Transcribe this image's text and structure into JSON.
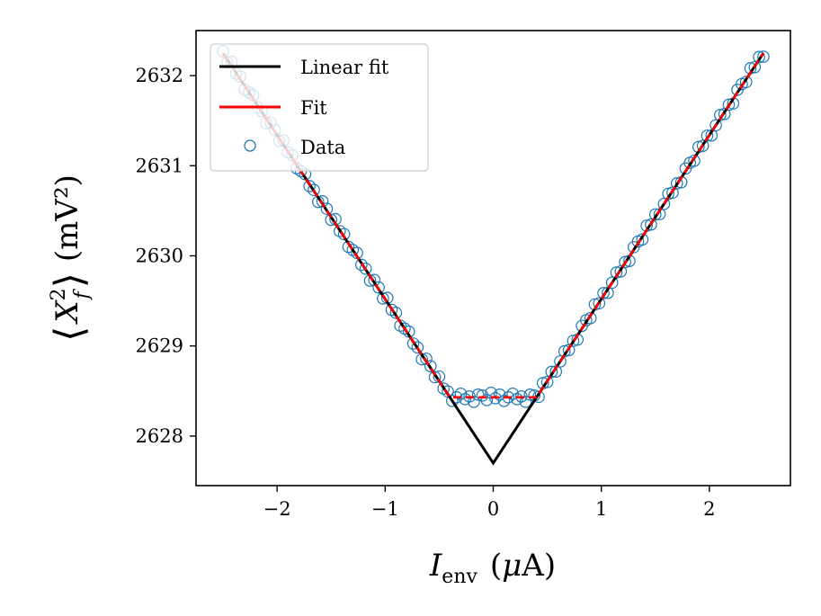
{
  "chart_data": {
    "type": "scatter",
    "title": "",
    "xlabel": {
      "main": "I",
      "sub": "env",
      "unit_prefix": "(",
      "unit_mu": "μ",
      "unit_rest": "A)"
    },
    "ylabel": {
      "langle": "⟨",
      "rangle": "⟩",
      "base": "X",
      "sup": "2",
      "sub": "f",
      "unit": "(mV²)"
    },
    "xlim": [
      -2.75,
      2.75
    ],
    "ylim": [
      2627.45,
      2632.5
    ],
    "xticks": [
      {
        "value": -2,
        "label": "−2"
      },
      {
        "value": -1,
        "label": "−1"
      },
      {
        "value": 0,
        "label": "0"
      },
      {
        "value": 1,
        "label": "1"
      },
      {
        "value": 2,
        "label": "2"
      }
    ],
    "yticks": [
      {
        "value": 2628,
        "label": "2628"
      },
      {
        "value": 2629,
        "label": "2629"
      },
      {
        "value": 2630,
        "label": "2630"
      },
      {
        "value": 2631,
        "label": "2631"
      },
      {
        "value": 2632,
        "label": "2632"
      }
    ],
    "legend": {
      "position": "top-left",
      "entries": [
        {
          "label": "Linear fit",
          "kind": "line",
          "color": "#000000"
        },
        {
          "label": "Fit",
          "kind": "line",
          "color": "#ff0000"
        },
        {
          "label": "Data",
          "kind": "marker",
          "color": "#1f77b4"
        }
      ]
    },
    "series": [
      {
        "name": "Linear fit",
        "kind": "line",
        "color": "#000000",
        "x": [
          -2.5,
          0.0,
          2.5
        ],
        "y": [
          2632.25,
          2627.7,
          2632.25
        ]
      },
      {
        "name": "Fit",
        "kind": "curve",
        "color": "#ff0000",
        "model": {
          "y0": 2627.7,
          "slope": 1.82,
          "floor": 2628.43,
          "xmin": -2.5,
          "xmax": 2.5
        }
      },
      {
        "name": "Data",
        "kind": "marker",
        "color": "#1f77b4",
        "x_start": -2.5,
        "x_end": 2.5,
        "count": 126,
        "noise": [
          0.02,
          -0.03,
          0.05,
          -0.01,
          0.03,
          -0.04,
          0.0,
          0.04,
          -0.02,
          0.01,
          -0.05,
          0.03
        ]
      }
    ]
  }
}
